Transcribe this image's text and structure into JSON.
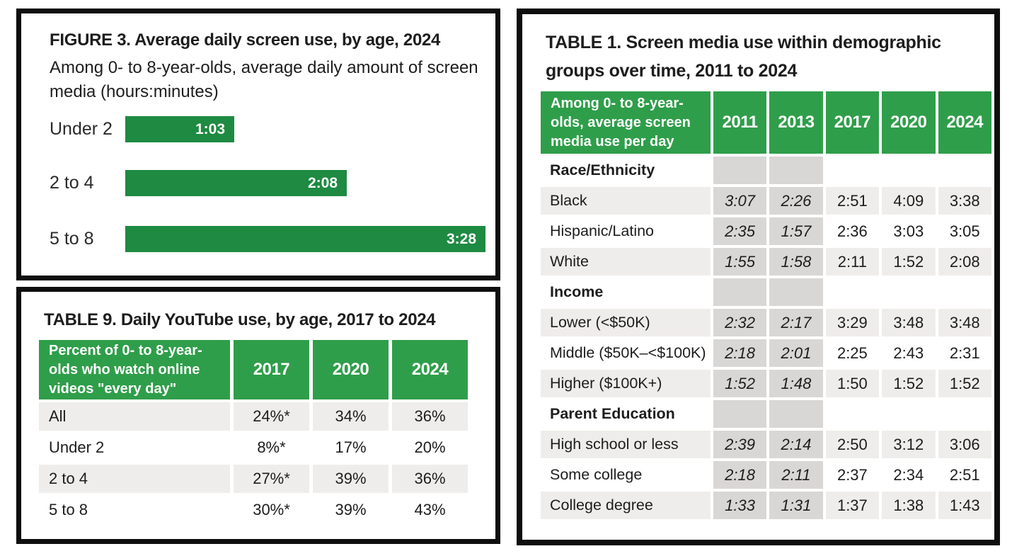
{
  "colors": {
    "green": "#2f9e4a",
    "bar_green": "#1e8a42",
    "stripe_gray": "#efedeb",
    "old_col_gray": "#d9d7d5",
    "panel_border": "#0e0e0e"
  },
  "chart_data": [
    {
      "type": "bar",
      "title": "FIGURE 3. Average daily screen use, by age, 2024",
      "subtitle": "Among 0- to 8-year-olds, average daily amount of screen media (hours:minutes)",
      "orientation": "horizontal",
      "categories": [
        "Under 2",
        "2 to 4",
        "5 to 8"
      ],
      "values_minutes": [
        63,
        128,
        208
      ],
      "value_labels": [
        "1:03",
        "2:08",
        "3:28"
      ],
      "xlim_minutes": [
        0,
        208
      ],
      "grid": "off",
      "value_label_position": "inside-right"
    },
    {
      "type": "table",
      "title": "TABLE 9. Daily YouTube use, by age, 2017 to 2024",
      "header_label": "Percent of 0- to 8-year-olds who watch online videos \"every day\"",
      "years": [
        "2017",
        "2020",
        "2024"
      ],
      "rows": [
        {
          "label": "All",
          "values": [
            "24%*",
            "34%",
            "36%"
          ]
        },
        {
          "label": "Under 2",
          "values": [
            "8%*",
            "17%",
            "20%"
          ]
        },
        {
          "label": "2 to 4",
          "values": [
            "27%*",
            "39%",
            "36%"
          ]
        },
        {
          "label": "5 to 8",
          "values": [
            "30%*",
            "39%",
            "43%"
          ]
        }
      ]
    },
    {
      "type": "table",
      "title": "TABLE 1. Screen media use within demographic groups over time, 2011 to 2024",
      "header_label": "Among 0- to 8-year-olds, average screen media use per day",
      "years": [
        "2011",
        "2013",
        "2017",
        "2020",
        "2024"
      ],
      "rows": [
        {
          "row_type": "section",
          "label": "Race/Ethnicity",
          "values": [
            "",
            "",
            "",
            "",
            ""
          ]
        },
        {
          "row_type": "data",
          "label": "Black",
          "values": [
            "3:07",
            "2:26",
            "2:51",
            "4:09",
            "3:38"
          ]
        },
        {
          "row_type": "data",
          "label": "Hispanic/Latino",
          "values": [
            "2:35",
            "1:57",
            "2:36",
            "3:03",
            "3:05"
          ]
        },
        {
          "row_type": "data",
          "label": "White",
          "values": [
            "1:55",
            "1:58",
            "2:11",
            "1:52",
            "2:08"
          ]
        },
        {
          "row_type": "section",
          "label": "Income",
          "values": [
            "",
            "",
            "",
            "",
            ""
          ]
        },
        {
          "row_type": "data",
          "label": "Lower (<$50K)",
          "values": [
            "2:32",
            "2:17",
            "3:29",
            "3:48",
            "3:48"
          ]
        },
        {
          "row_type": "data",
          "label": "Middle ($50K–<$100K)",
          "values": [
            "2:18",
            "2:01",
            "2:25",
            "2:43",
            "2:31"
          ]
        },
        {
          "row_type": "data",
          "label": "Higher ($100K+)",
          "values": [
            "1:52",
            "1:48",
            "1:50",
            "1:52",
            "1:52"
          ]
        },
        {
          "row_type": "section",
          "label": "Parent Education",
          "values": [
            "",
            "",
            "",
            "",
            ""
          ]
        },
        {
          "row_type": "data",
          "label": "High school or less",
          "values": [
            "2:39",
            "2:14",
            "2:50",
            "3:12",
            "3:06"
          ]
        },
        {
          "row_type": "data",
          "label": "Some college",
          "values": [
            "2:18",
            "2:11",
            "2:37",
            "2:34",
            "2:51"
          ]
        },
        {
          "row_type": "data",
          "label": "College degree",
          "values": [
            "1:33",
            "1:31",
            "1:37",
            "1:38",
            "1:43"
          ]
        }
      ]
    }
  ]
}
